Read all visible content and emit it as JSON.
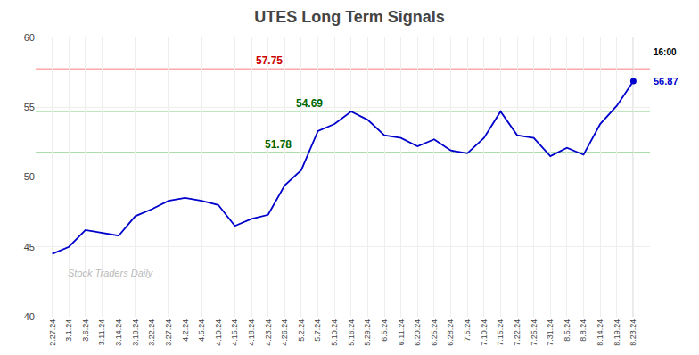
{
  "chart_data": {
    "type": "line",
    "title": "UTES Long Term Signals",
    "categories": [
      "2.27.24",
      "3.1.24",
      "3.6.24",
      "3.11.24",
      "3.14.24",
      "3.19.24",
      "3.22.24",
      "3.27.24",
      "4.2.24",
      "4.5.24",
      "4.10.24",
      "4.15.24",
      "4.18.24",
      "4.23.24",
      "4.26.24",
      "5.2.24",
      "5.7.24",
      "5.10.24",
      "5.16.24",
      "5.29.24",
      "6.5.24",
      "6.11.24",
      "6.20.24",
      "6.25.24",
      "6.28.24",
      "7.5.24",
      "7.10.24",
      "7.15.24",
      "7.22.24",
      "7.25.24",
      "7.31.24",
      "8.5.24",
      "8.8.24",
      "8.14.24",
      "8.19.24",
      "8.23.24"
    ],
    "values": [
      44.5,
      45.0,
      46.2,
      46.0,
      45.8,
      47.2,
      47.7,
      48.3,
      48.5,
      48.3,
      48.0,
      46.5,
      47.0,
      47.3,
      49.4,
      50.5,
      53.3,
      53.8,
      54.7,
      54.1,
      53.0,
      52.8,
      52.2,
      52.7,
      51.9,
      51.7,
      52.8,
      54.7,
      53.0,
      52.8,
      51.5,
      52.1,
      51.6,
      53.8,
      55.1,
      56.87
    ],
    "color": "#0000cc",
    "ylim": [
      40,
      60
    ],
    "yticks": [
      40,
      45,
      50,
      55,
      60
    ],
    "grid": true,
    "reference_lines": [
      {
        "value": 57.75,
        "label": "57.75",
        "color": "#ffaaaa",
        "label_color": "#cc0000"
      },
      {
        "value": 54.69,
        "label": "54.69",
        "color": "#aaddaa",
        "label_color": "#006600"
      },
      {
        "value": 51.78,
        "label": "51.78",
        "color": "#aaddaa",
        "label_color": "#006600"
      }
    ],
    "last_time_label": "16:00",
    "last_price_label": {
      "value": 56.87,
      "label": "56.87",
      "color": "#0000cc"
    },
    "watermark": {
      "text": "Stock Traders Daily",
      "color": "#bbbbbb"
    }
  }
}
